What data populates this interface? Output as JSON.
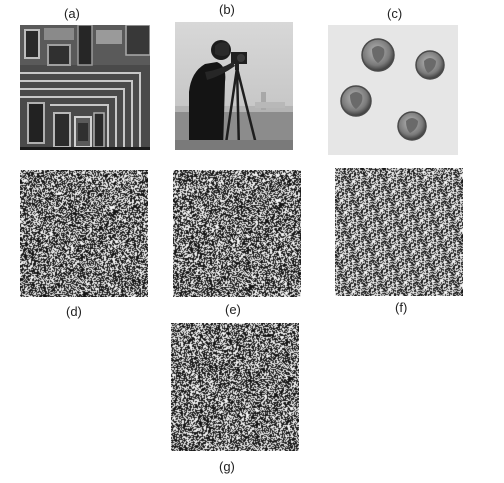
{
  "figure": {
    "panels": [
      {
        "id": "a",
        "label": "(a)",
        "content": "circuit-image"
      },
      {
        "id": "b",
        "label": "(b)",
        "content": "cameraman-image"
      },
      {
        "id": "c",
        "label": "(c)",
        "content": "coins-image"
      },
      {
        "id": "d",
        "label": "(d)",
        "content": "noise-image"
      },
      {
        "id": "e",
        "label": "(e)",
        "content": "noise-image"
      },
      {
        "id": "f",
        "label": "(f)",
        "content": "noise-image"
      },
      {
        "id": "g",
        "label": "(g)",
        "content": "noise-image"
      }
    ]
  }
}
